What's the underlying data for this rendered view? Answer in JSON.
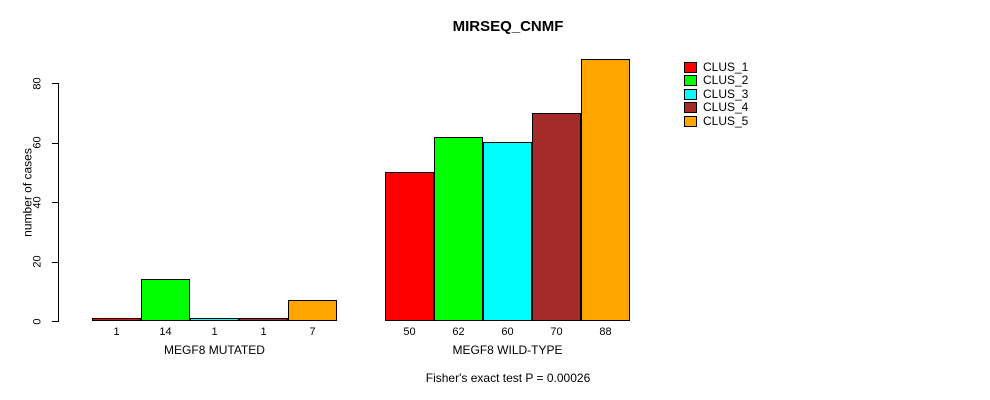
{
  "chart_data": {
    "type": "bar",
    "title": "MIRSEQ_CNMF",
    "ylabel": "number of cases",
    "caption": "Fisher's exact test P = 0.00026",
    "ylim": [
      0,
      88
    ],
    "yticks": [
      0,
      20,
      40,
      60,
      80
    ],
    "grid": false,
    "legend_position": "right",
    "series": [
      {
        "name": "CLUS_1",
        "color": "#FF0000"
      },
      {
        "name": "CLUS_2",
        "color": "#00FF00"
      },
      {
        "name": "CLUS_3",
        "color": "#00FFFF"
      },
      {
        "name": "CLUS_4",
        "color": "#A52A2A"
      },
      {
        "name": "CLUS_5",
        "color": "#FFA500"
      }
    ],
    "groups": [
      {
        "label": "MEGF8 MUTATED",
        "values": [
          1,
          14,
          1,
          1,
          7
        ]
      },
      {
        "label": "MEGF8 WILD-TYPE",
        "values": [
          50,
          62,
          60,
          70,
          88
        ]
      }
    ]
  }
}
